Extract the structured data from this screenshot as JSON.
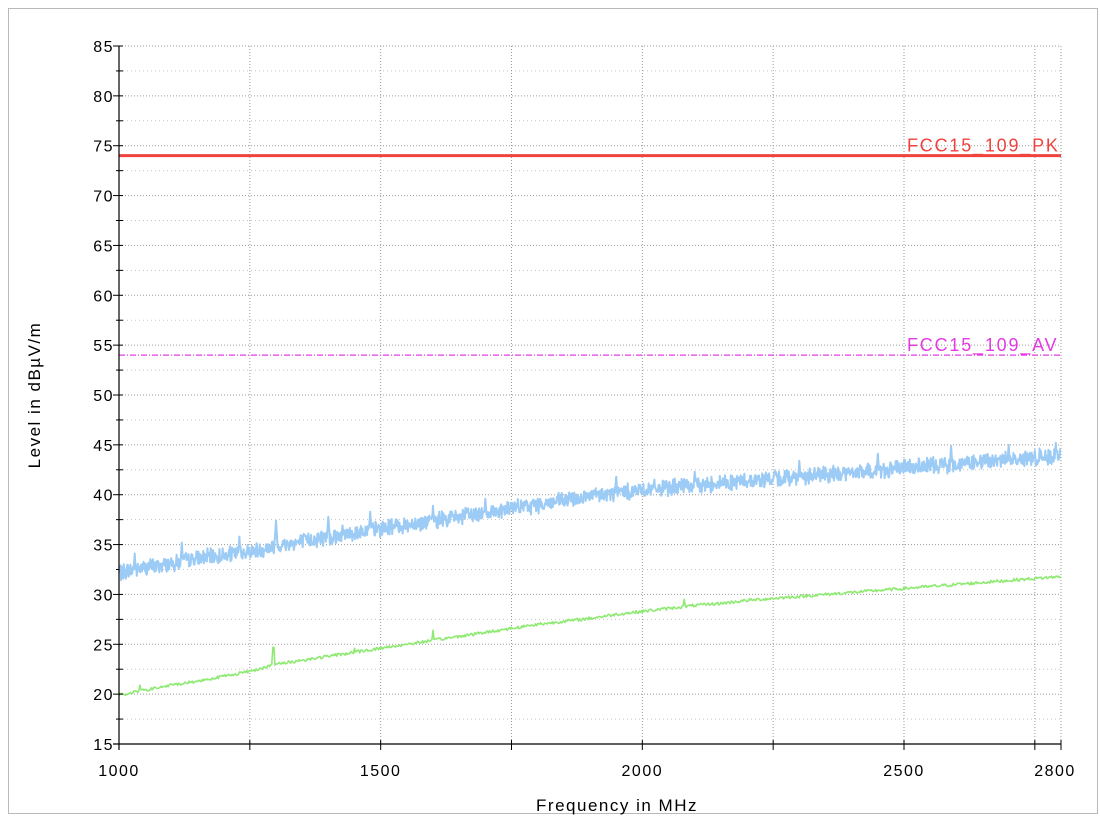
{
  "chart_data": {
    "type": "line",
    "xlabel": "Frequency in MHz",
    "ylabel": "Level in dBµV/m",
    "xlim": [
      1000,
      2800
    ],
    "ylim": [
      15,
      85
    ],
    "x_ticks": [
      "1000",
      "1500",
      "2000",
      "2500",
      "2800"
    ],
    "y_ticks": [
      "15",
      "20",
      "25",
      "30",
      "35",
      "40",
      "45",
      "50",
      "55",
      "60",
      "65",
      "70",
      "75",
      "80",
      "85"
    ],
    "grid": true,
    "limit_lines": [
      {
        "label": "FCC15_109_PK",
        "value": 74,
        "color": "#f0433e"
      },
      {
        "label": "FCC15_109_AV",
        "value": 54,
        "color": "#e43be4"
      }
    ],
    "series": [
      {
        "color": "#9ccbf5",
        "x": [
          1000,
          1050,
          1100,
          1150,
          1200,
          1250,
          1300,
          1350,
          1400,
          1450,
          1500,
          1550,
          1600,
          1650,
          1700,
          1750,
          1800,
          1850,
          1900,
          1950,
          2000,
          2050,
          2100,
          2150,
          2200,
          2250,
          2300,
          2350,
          2400,
          2450,
          2500,
          2550,
          2600,
          2650,
          2700,
          2750,
          2800
        ],
        "values": [
          32.2,
          32.7,
          33.1,
          33.6,
          33.9,
          34.3,
          34.8,
          35.3,
          35.8,
          36.2,
          36.6,
          37.0,
          37.4,
          37.8,
          38.2,
          38.6,
          39.0,
          39.4,
          39.8,
          40.2,
          40.5,
          40.7,
          40.9,
          41.2,
          41.4,
          41.6,
          41.8,
          42.0,
          42.2,
          42.4,
          42.7,
          42.9,
          43.1,
          43.3,
          43.5,
          43.7,
          44.0
        ],
        "noise": 0.8,
        "spikes": [
          {
            "x": 1030,
            "y": 34.1
          },
          {
            "x": 1120,
            "y": 35.2
          },
          {
            "x": 1230,
            "y": 35.8
          },
          {
            "x": 1300,
            "y": 37.4
          },
          {
            "x": 1400,
            "y": 37.8
          },
          {
            "x": 1480,
            "y": 38.3
          },
          {
            "x": 1600,
            "y": 38.9
          },
          {
            "x": 1700,
            "y": 39.6
          },
          {
            "x": 1950,
            "y": 41.8
          },
          {
            "x": 2100,
            "y": 42.3
          },
          {
            "x": 2300,
            "y": 43.4
          },
          {
            "x": 2450,
            "y": 44.1
          },
          {
            "x": 2590,
            "y": 44.9
          },
          {
            "x": 2700,
            "y": 45.0
          },
          {
            "x": 2790,
            "y": 45.2
          }
        ]
      },
      {
        "color": "#8fea73",
        "x": [
          1000,
          1050,
          1100,
          1150,
          1200,
          1250,
          1300,
          1350,
          1400,
          1450,
          1500,
          1550,
          1600,
          1650,
          1700,
          1750,
          1800,
          1850,
          1900,
          1950,
          2000,
          2050,
          2100,
          2150,
          2200,
          2250,
          2300,
          2350,
          2400,
          2450,
          2500,
          2550,
          2600,
          2650,
          2700,
          2750,
          2800
        ],
        "values": [
          19.9,
          20.4,
          20.9,
          21.3,
          21.8,
          22.3,
          23.0,
          23.4,
          23.8,
          24.2,
          24.6,
          25.0,
          25.4,
          25.8,
          26.2,
          26.6,
          27.0,
          27.3,
          27.6,
          28.0,
          28.3,
          28.6,
          28.9,
          29.1,
          29.4,
          29.6,
          29.8,
          30.0,
          30.2,
          30.4,
          30.6,
          30.8,
          31.0,
          31.2,
          31.4,
          31.6,
          31.8
        ],
        "noise": 0.15,
        "spikes": [
          {
            "x": 1040,
            "y": 20.9
          },
          {
            "x": 1165,
            "y": 22.0
          },
          {
            "x": 1295,
            "y": 25.5
          },
          {
            "x": 1450,
            "y": 24.6
          },
          {
            "x": 1600,
            "y": 26.4
          },
          {
            "x": 2080,
            "y": 29.5
          }
        ]
      }
    ]
  }
}
